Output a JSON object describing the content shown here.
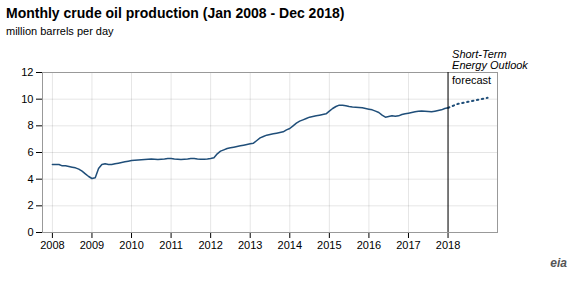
{
  "chart_data": {
    "type": "line",
    "title": "Monthly crude oil production (Jan 2008 - Dec 2018)",
    "subtitle": "million barrels per day",
    "caption": "eia",
    "x": [
      2008.0,
      2008.083,
      2008.167,
      2008.25,
      2008.333,
      2008.417,
      2008.5,
      2008.583,
      2008.667,
      2008.75,
      2008.833,
      2008.917,
      2009.0,
      2009.083,
      2009.167,
      2009.25,
      2009.333,
      2009.417,
      2009.5,
      2009.583,
      2009.667,
      2009.75,
      2009.833,
      2009.917,
      2010.0,
      2010.083,
      2010.167,
      2010.25,
      2010.333,
      2010.417,
      2010.5,
      2010.583,
      2010.667,
      2010.75,
      2010.833,
      2010.917,
      2011.0,
      2011.083,
      2011.167,
      2011.25,
      2011.333,
      2011.417,
      2011.5,
      2011.583,
      2011.667,
      2011.75,
      2011.833,
      2011.917,
      2012.0,
      2012.083,
      2012.167,
      2012.25,
      2012.333,
      2012.417,
      2012.5,
      2012.583,
      2012.667,
      2012.75,
      2012.833,
      2012.917,
      2013.0,
      2013.083,
      2013.167,
      2013.25,
      2013.333,
      2013.417,
      2013.5,
      2013.583,
      2013.667,
      2013.75,
      2013.833,
      2013.917,
      2014.0,
      2014.083,
      2014.167,
      2014.25,
      2014.333,
      2014.417,
      2014.5,
      2014.583,
      2014.667,
      2014.75,
      2014.833,
      2014.917,
      2015.0,
      2015.083,
      2015.167,
      2015.25,
      2015.333,
      2015.417,
      2015.5,
      2015.583,
      2015.667,
      2015.75,
      2015.833,
      2015.917,
      2016.0,
      2016.083,
      2016.167,
      2016.25,
      2016.333,
      2016.417,
      2016.5,
      2016.583,
      2016.667,
      2016.75,
      2016.833,
      2016.917,
      2017.0,
      2017.083,
      2017.167,
      2017.25,
      2017.333,
      2017.417,
      2017.5,
      2017.583,
      2017.667,
      2017.75,
      2017.833,
      2017.917,
      2018.0,
      2018.083,
      2018.167,
      2018.25,
      2018.333,
      2018.417,
      2018.5,
      2018.583,
      2018.667,
      2018.75,
      2018.833,
      2018.917,
      2019.0
    ],
    "series": [
      {
        "color": "#1f4e79",
        "line_style": "solid",
        "values": [
          5.1,
          5.1,
          5.1,
          5.0,
          5.0,
          4.95,
          4.9,
          4.85,
          4.75,
          4.6,
          4.4,
          4.2,
          4.05,
          4.1,
          4.8,
          5.1,
          5.15,
          5.1,
          5.1,
          5.15,
          5.2,
          5.25,
          5.3,
          5.35,
          5.4,
          5.42,
          5.44,
          5.46,
          5.48,
          5.5,
          5.52,
          5.5,
          5.48,
          5.5,
          5.52,
          5.55,
          5.55,
          5.52,
          5.5,
          5.48,
          5.5,
          5.52,
          5.55,
          5.55,
          5.52,
          5.5,
          5.5,
          5.52,
          5.55,
          5.6,
          5.9,
          6.1,
          6.2,
          6.3,
          6.35,
          6.4,
          6.45,
          6.5,
          6.55,
          6.6,
          6.65,
          6.7,
          6.9,
          7.1,
          7.2,
          7.3,
          7.35,
          7.4,
          7.45,
          7.5,
          7.55,
          7.7,
          7.8,
          8.0,
          8.2,
          8.35,
          8.45,
          8.55,
          8.65,
          8.7,
          8.75,
          8.8,
          8.85,
          8.9,
          9.1,
          9.3,
          9.45,
          9.55,
          9.55,
          9.5,
          9.45,
          9.42,
          9.4,
          9.38,
          9.35,
          9.3,
          9.25,
          9.2,
          9.1,
          9.0,
          8.8,
          8.65,
          8.7,
          8.75,
          8.72,
          8.75,
          8.85,
          8.9,
          8.95,
          9.0,
          9.05,
          9.1,
          9.12,
          9.1,
          9.08,
          9.05,
          9.1,
          9.15,
          9.2,
          9.3,
          9.35,
          null,
          null,
          null,
          null,
          null,
          null,
          null,
          null,
          null,
          null,
          null,
          null
        ]
      },
      {
        "color": "#1f4e79",
        "line_style": "dotted",
        "values": [
          null,
          null,
          null,
          null,
          null,
          null,
          null,
          null,
          null,
          null,
          null,
          null,
          null,
          null,
          null,
          null,
          null,
          null,
          null,
          null,
          null,
          null,
          null,
          null,
          null,
          null,
          null,
          null,
          null,
          null,
          null,
          null,
          null,
          null,
          null,
          null,
          null,
          null,
          null,
          null,
          null,
          null,
          null,
          null,
          null,
          null,
          null,
          null,
          null,
          null,
          null,
          null,
          null,
          null,
          null,
          null,
          null,
          null,
          null,
          null,
          null,
          null,
          null,
          null,
          null,
          null,
          null,
          null,
          null,
          null,
          null,
          null,
          null,
          null,
          null,
          null,
          null,
          null,
          null,
          null,
          null,
          null,
          null,
          null,
          null,
          null,
          null,
          null,
          null,
          null,
          null,
          null,
          null,
          null,
          null,
          null,
          null,
          null,
          null,
          null,
          null,
          null,
          null,
          null,
          null,
          null,
          null,
          null,
          null,
          null,
          null,
          null,
          null,
          null,
          null,
          null,
          null,
          null,
          null,
          null,
          9.35,
          9.45,
          9.55,
          9.65,
          9.7,
          9.75,
          9.8,
          9.85,
          9.9,
          9.95,
          10.0,
          10.05,
          10.1
        ]
      }
    ],
    "vlines": [
      2018.0
    ],
    "annotations": [
      {
        "text": "Short-Term\nEnergy Outlook",
        "x": 2018.0,
        "style": "italic"
      },
      {
        "text": "forecast",
        "x": 2018.0
      }
    ],
    "xlim": [
      2007.75,
      2019.25
    ],
    "xticks": [
      2008,
      2009,
      2010,
      2011,
      2012,
      2013,
      2014,
      2015,
      2016,
      2017,
      2018
    ],
    "ylim": [
      0,
      12
    ],
    "yticks": [
      0,
      2,
      4,
      6,
      8,
      10,
      12
    ],
    "grid": true
  }
}
